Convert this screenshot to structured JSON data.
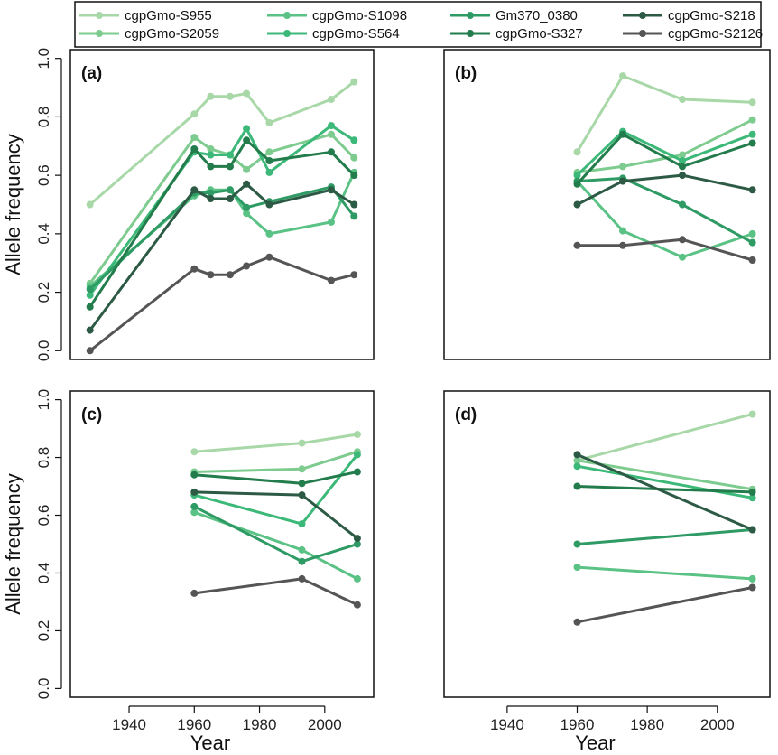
{
  "chart_data": {
    "type": "line",
    "ylabel": "Allele frequency",
    "xlabel": "Year",
    "xlim": [
      1922,
      2015
    ],
    "ylim": [
      -0.03,
      1.03
    ],
    "xticks": [
      "1940",
      "1960",
      "1980",
      "2000"
    ],
    "yticks": [
      "0.0",
      "0.2",
      "0.4",
      "0.6",
      "0.8",
      "1.0"
    ],
    "grid": false,
    "legend_position": "top",
    "series": [
      {
        "name": "cgpGmo-S955",
        "color": "#a8d8a8"
      },
      {
        "name": "cgpGmo-S2059",
        "color": "#7ecb8f"
      },
      {
        "name": "cgpGmo-S1098",
        "color": "#5bc285"
      },
      {
        "name": "cgpGmo-S564",
        "color": "#3cb878"
      },
      {
        "name": "Gm370_0380",
        "color": "#2e9a64"
      },
      {
        "name": "cgpGmo-S327",
        "color": "#237c4c"
      },
      {
        "name": "cgpGmo-S218",
        "color": "#2c5a44"
      },
      {
        "name": "cgpGmo-S2126",
        "color": "#555555"
      }
    ],
    "panels": [
      {
        "tag": "(a)",
        "lines": [
          {
            "series": 0,
            "x": [
              1928,
              1960,
              1965,
              1971,
              1976,
              1983,
              2002,
              2009
            ],
            "y": [
              0.5,
              0.81,
              0.87,
              0.87,
              0.88,
              0.78,
              0.86,
              0.92
            ]
          },
          {
            "series": 1,
            "x": [
              1928,
              1960,
              1965,
              1971,
              1976,
              1983,
              2002,
              2009
            ],
            "y": [
              0.23,
              0.73,
              0.69,
              0.67,
              0.62,
              0.68,
              0.74,
              0.66
            ]
          },
          {
            "series": 2,
            "x": [
              1928,
              1960,
              1965,
              1971,
              1976,
              1983,
              2002,
              2009
            ],
            "y": [
              0.22,
              0.53,
              0.55,
              0.55,
              0.47,
              0.4,
              0.44,
              0.61
            ]
          },
          {
            "series": 3,
            "x": [
              1928,
              1960,
              1965,
              1971,
              1976,
              1983,
              2002,
              2009
            ],
            "y": [
              0.19,
              0.68,
              0.67,
              0.67,
              0.76,
              0.61,
              0.77,
              0.72
            ]
          },
          {
            "series": 4,
            "x": [
              1928,
              1960,
              1965,
              1971,
              1976,
              1983,
              2002,
              2009
            ],
            "y": [
              0.21,
              0.54,
              0.54,
              0.55,
              0.49,
              0.51,
              0.56,
              0.46
            ]
          },
          {
            "series": 5,
            "x": [
              1928,
              1960,
              1965,
              1971,
              1976,
              1983,
              2002,
              2009
            ],
            "y": [
              0.15,
              0.69,
              0.63,
              0.63,
              0.72,
              0.65,
              0.68,
              0.6
            ]
          },
          {
            "series": 6,
            "x": [
              1928,
              1960,
              1965,
              1971,
              1976,
              1983,
              2002,
              2009
            ],
            "y": [
              0.07,
              0.55,
              0.52,
              0.52,
              0.57,
              0.5,
              0.55,
              0.5
            ]
          },
          {
            "series": 7,
            "x": [
              1928,
              1960,
              1965,
              1971,
              1976,
              1983,
              2002,
              2009
            ],
            "y": [
              0.0,
              0.28,
              0.26,
              0.26,
              0.29,
              0.32,
              0.24,
              0.26
            ]
          }
        ]
      },
      {
        "tag": "(b)",
        "lines": [
          {
            "series": 0,
            "x": [
              1960,
              1973,
              1990,
              2010
            ],
            "y": [
              0.68,
              0.94,
              0.86,
              0.85
            ]
          },
          {
            "series": 1,
            "x": [
              1960,
              1973,
              1990,
              2010
            ],
            "y": [
              0.61,
              0.63,
              0.67,
              0.79
            ]
          },
          {
            "series": 2,
            "x": [
              1960,
              1973,
              1990,
              2010
            ],
            "y": [
              0.58,
              0.41,
              0.32,
              0.4
            ]
          },
          {
            "series": 3,
            "x": [
              1960,
              1973,
              1990,
              2010
            ],
            "y": [
              0.6,
              0.75,
              0.65,
              0.74
            ]
          },
          {
            "series": 4,
            "x": [
              1960,
              1973,
              1990,
              2010
            ],
            "y": [
              0.58,
              0.59,
              0.5,
              0.37
            ]
          },
          {
            "series": 5,
            "x": [
              1960,
              1973,
              1990,
              2010
            ],
            "y": [
              0.57,
              0.74,
              0.63,
              0.71
            ]
          },
          {
            "series": 6,
            "x": [
              1960,
              1973,
              1990,
              2010
            ],
            "y": [
              0.5,
              0.58,
              0.6,
              0.55
            ]
          },
          {
            "series": 7,
            "x": [
              1960,
              1973,
              1990,
              2010
            ],
            "y": [
              0.36,
              0.36,
              0.38,
              0.31
            ]
          }
        ]
      },
      {
        "tag": "(c)",
        "lines": [
          {
            "series": 0,
            "x": [
              1960,
              1993,
              2010
            ],
            "y": [
              0.82,
              0.85,
              0.88
            ]
          },
          {
            "series": 1,
            "x": [
              1960,
              1993,
              2010
            ],
            "y": [
              0.75,
              0.76,
              0.82
            ]
          },
          {
            "series": 2,
            "x": [
              1960,
              1993,
              2010
            ],
            "y": [
              0.61,
              0.48,
              0.38
            ]
          },
          {
            "series": 3,
            "x": [
              1960,
              1993,
              2010
            ],
            "y": [
              0.67,
              0.57,
              0.81
            ]
          },
          {
            "series": 4,
            "x": [
              1960,
              1993,
              2010
            ],
            "y": [
              0.63,
              0.44,
              0.5
            ]
          },
          {
            "series": 5,
            "x": [
              1960,
              1993,
              2010
            ],
            "y": [
              0.74,
              0.71,
              0.75
            ]
          },
          {
            "series": 6,
            "x": [
              1960,
              1993,
              2010
            ],
            "y": [
              0.68,
              0.67,
              0.52
            ]
          },
          {
            "series": 7,
            "x": [
              1960,
              1993,
              2010
            ],
            "y": [
              0.33,
              0.38,
              0.29
            ]
          }
        ]
      },
      {
        "tag": "(d)",
        "lines": [
          {
            "series": 0,
            "x": [
              1960,
              2010
            ],
            "y": [
              0.79,
              0.95
            ]
          },
          {
            "series": 1,
            "x": [
              1960,
              2010
            ],
            "y": [
              0.79,
              0.69
            ]
          },
          {
            "series": 2,
            "x": [
              1960,
              2010
            ],
            "y": [
              0.42,
              0.38
            ]
          },
          {
            "series": 3,
            "x": [
              1960,
              2010
            ],
            "y": [
              0.77,
              0.66
            ]
          },
          {
            "series": 4,
            "x": [
              1960,
              2010
            ],
            "y": [
              0.5,
              0.55
            ]
          },
          {
            "series": 5,
            "x": [
              1960,
              2010
            ],
            "y": [
              0.7,
              0.68
            ]
          },
          {
            "series": 6,
            "x": [
              1960,
              2010
            ],
            "y": [
              0.81,
              0.55
            ]
          },
          {
            "series": 7,
            "x": [
              1960,
              2010
            ],
            "y": [
              0.23,
              0.35
            ]
          }
        ]
      }
    ]
  }
}
